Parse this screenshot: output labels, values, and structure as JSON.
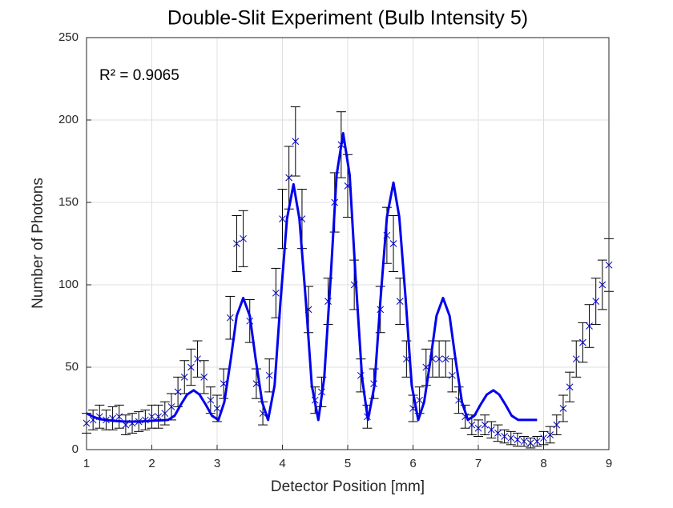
{
  "chart_data": {
    "type": "scatter",
    "title": "Double-Slit Experiment (Bulb Intensity 5)",
    "xlabel": "Detector Position [mm]",
    "ylabel": "Number of Photons",
    "annotation": "R² = 0.9065",
    "xlim": [
      1,
      9
    ],
    "ylim": [
      0,
      250
    ],
    "xticks": [
      1,
      2,
      3,
      4,
      5,
      6,
      7,
      8,
      9
    ],
    "yticks": [
      0,
      50,
      100,
      150,
      200,
      250
    ],
    "grid": true,
    "series": [
      {
        "type": "scatter",
        "color": "#0000cc",
        "error_color": "#000000",
        "x": [
          1.0,
          1.1,
          1.2,
          1.3,
          1.4,
          1.5,
          1.6,
          1.7,
          1.8,
          1.9,
          2.0,
          2.1,
          2.2,
          2.3,
          2.4,
          2.5,
          2.6,
          2.7,
          2.8,
          2.9,
          3.0,
          3.1,
          3.2,
          3.3,
          3.4,
          3.5,
          3.6,
          3.7,
          3.8,
          3.9,
          4.0,
          4.1,
          4.2,
          4.3,
          4.4,
          4.5,
          4.6,
          4.7,
          4.8,
          4.9,
          5.0,
          5.1,
          5.2,
          5.3,
          5.4,
          5.5,
          5.6,
          5.7,
          5.8,
          5.9,
          6.0,
          6.1,
          6.2,
          6.3,
          6.4,
          6.5,
          6.6,
          6.7,
          6.8,
          6.9,
          7.0,
          7.1,
          7.2,
          7.3,
          7.4,
          7.5,
          7.6,
          7.7,
          7.8,
          7.9,
          8.0,
          8.1,
          8.2,
          8.3,
          8.4,
          8.5,
          8.6,
          8.7,
          8.8,
          8.9,
          9.0
        ],
        "values": [
          16,
          18,
          20,
          18,
          19,
          20,
          15,
          16,
          17,
          18,
          20,
          20,
          22,
          26,
          35,
          44,
          50,
          55,
          44,
          30,
          25,
          40,
          80,
          125,
          128,
          78,
          40,
          22,
          45,
          95,
          140,
          165,
          187,
          140,
          85,
          30,
          35,
          90,
          150,
          185,
          160,
          100,
          45,
          20,
          40,
          85,
          130,
          125,
          90,
          55,
          25,
          30,
          50,
          55,
          55,
          55,
          45,
          30,
          20,
          15,
          13,
          15,
          12,
          10,
          8,
          7,
          6,
          5,
          4,
          5,
          7,
          9,
          15,
          25,
          38,
          55,
          65,
          75,
          90,
          100,
          112
        ],
        "errors": [
          6,
          6,
          7,
          6,
          7,
          7,
          6,
          6,
          6,
          6,
          7,
          7,
          7,
          8,
          9,
          10,
          11,
          11,
          10,
          8,
          8,
          9,
          13,
          17,
          17,
          13,
          9,
          7,
          10,
          15,
          18,
          19,
          21,
          18,
          14,
          8,
          9,
          14,
          18,
          20,
          19,
          15,
          10,
          7,
          9,
          14,
          17,
          17,
          14,
          11,
          8,
          8,
          11,
          11,
          11,
          11,
          10,
          8,
          7,
          6,
          5,
          6,
          5,
          5,
          4,
          4,
          4,
          3,
          3,
          3,
          4,
          5,
          6,
          8,
          9,
          11,
          12,
          13,
          14,
          15,
          16
        ]
      },
      {
        "type": "line",
        "color": "#0000ee",
        "x": [
          1.0,
          1.1,
          1.2,
          1.4,
          1.6,
          1.8,
          2.0,
          2.15,
          2.25,
          2.35,
          2.44,
          2.54,
          2.64,
          2.73,
          2.83,
          2.92,
          3.02,
          3.11,
          3.21,
          3.3,
          3.4,
          3.5,
          3.59,
          3.69,
          3.78,
          3.88,
          3.97,
          4.07,
          4.17,
          4.26,
          4.36,
          4.45,
          4.55,
          4.64,
          4.74,
          4.83,
          4.93,
          5.03,
          5.12,
          5.22,
          5.31,
          5.41,
          5.5,
          5.6,
          5.7,
          5.79,
          5.89,
          5.98,
          6.08,
          6.17,
          6.27,
          6.36,
          6.46,
          6.56,
          6.65,
          6.75,
          6.84,
          6.94,
          7.03,
          7.13,
          7.23,
          7.32,
          7.42,
          7.51,
          7.61,
          7.9
        ],
        "values": [
          22,
          20,
          18.5,
          17.5,
          17,
          17,
          17.5,
          17.8,
          18,
          20.6,
          27,
          33.4,
          36,
          33.4,
          27,
          20.6,
          18,
          28.8,
          55,
          81.2,
          92,
          81.2,
          55,
          28.8,
          18,
          38.9,
          89.5,
          140.1,
          161,
          140.1,
          89.5,
          38.9,
          18,
          43.4,
          105,
          166.6,
          192,
          166.6,
          105,
          43.4,
          18,
          39,
          90,
          141,
          162,
          141,
          90,
          39,
          18,
          28.8,
          55,
          81.2,
          92,
          81.2,
          55,
          28.8,
          18,
          20.6,
          27,
          33.4,
          36,
          33.4,
          27,
          20.6,
          18,
          18
        ]
      }
    ]
  }
}
